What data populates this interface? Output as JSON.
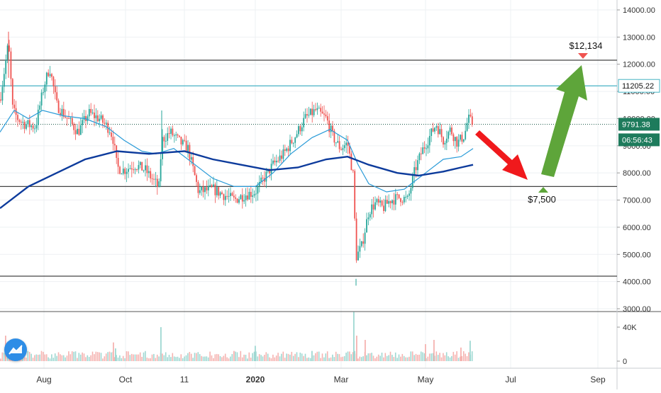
{
  "chart_data": {
    "type": "candlestick",
    "x_tick_labels": [
      "Aug",
      "Oct",
      "11",
      "2020",
      "Mar",
      "May",
      "Jul",
      "Sep"
    ],
    "y_tick_labels": [
      "14000.00",
      "13000.00",
      "12000.00",
      "11000.00",
      "10000.00",
      "9000.00",
      "8000.00",
      "7000.00",
      "6000.00",
      "5000.00",
      "4000.00",
      "3000.00"
    ],
    "ylim": [
      3000,
      14000
    ],
    "volume_tick_labels": [
      "40K",
      "0"
    ],
    "volume_ylim": [
      0,
      50000
    ],
    "horizontal_levels": [
      12150,
      11205.22,
      9791.38,
      7500,
      4200
    ],
    "price_tags": [
      {
        "label": "11205.22",
        "value": 11205.22,
        "style": "outline"
      },
      {
        "label": "9791.38",
        "value": 9791.38,
        "style": "green"
      },
      {
        "label": "06:56:43",
        "value": 9791.38,
        "style": "green-sub"
      }
    ],
    "annotations": [
      {
        "label": "$12,134",
        "value": 12134
      },
      {
        "label": "$7,500",
        "value": 7500
      }
    ],
    "price_anchors": [
      {
        "x": 0,
        "y": 10700
      },
      {
        "x": 12,
        "y": 12800
      },
      {
        "x": 18,
        "y": 10300
      },
      {
        "x": 25,
        "y": 10000
      },
      {
        "x": 35,
        "y": 9800
      },
      {
        "x": 50,
        "y": 9700
      },
      {
        "x": 62,
        "y": 11200
      },
      {
        "x": 70,
        "y": 11900
      },
      {
        "x": 80,
        "y": 10500
      },
      {
        "x": 95,
        "y": 10000
      },
      {
        "x": 110,
        "y": 9500
      },
      {
        "x": 125,
        "y": 10200
      },
      {
        "x": 140,
        "y": 10000
      },
      {
        "x": 155,
        "y": 9600
      },
      {
        "x": 160,
        "y": 9200
      },
      {
        "x": 165,
        "y": 8200
      },
      {
        "x": 175,
        "y": 8100
      },
      {
        "x": 190,
        "y": 8300
      },
      {
        "x": 205,
        "y": 8100
      },
      {
        "x": 220,
        "y": 7600
      },
      {
        "x": 224,
        "y": 7400
      },
      {
        "x": 228,
        "y": 9200
      },
      {
        "x": 240,
        "y": 9500
      },
      {
        "x": 255,
        "y": 9100
      },
      {
        "x": 265,
        "y": 8900
      },
      {
        "x": 280,
        "y": 7300
      },
      {
        "x": 300,
        "y": 7400
      },
      {
        "x": 315,
        "y": 7200
      },
      {
        "x": 330,
        "y": 7000
      },
      {
        "x": 345,
        "y": 7200
      },
      {
        "x": 360,
        "y": 7300
      },
      {
        "x": 370,
        "y": 7700
      },
      {
        "x": 385,
        "y": 8300
      },
      {
        "x": 400,
        "y": 8700
      },
      {
        "x": 415,
        "y": 9300
      },
      {
        "x": 430,
        "y": 10000
      },
      {
        "x": 445,
        "y": 10300
      },
      {
        "x": 460,
        "y": 10000
      },
      {
        "x": 470,
        "y": 9300
      },
      {
        "x": 480,
        "y": 8900
      },
      {
        "x": 490,
        "y": 9100
      },
      {
        "x": 498,
        "y": 7900
      },
      {
        "x": 502,
        "y": 4900
      },
      {
        "x": 510,
        "y": 5300
      },
      {
        "x": 520,
        "y": 6600
      },
      {
        "x": 530,
        "y": 6900
      },
      {
        "x": 540,
        "y": 6700
      },
      {
        "x": 550,
        "y": 7000
      },
      {
        "x": 565,
        "y": 7100
      },
      {
        "x": 575,
        "y": 7000
      },
      {
        "x": 585,
        "y": 8100
      },
      {
        "x": 595,
        "y": 8800
      },
      {
        "x": 605,
        "y": 9300
      },
      {
        "x": 615,
        "y": 9800
      },
      {
        "x": 625,
        "y": 9200
      },
      {
        "x": 635,
        "y": 9600
      },
      {
        "x": 645,
        "y": 9100
      },
      {
        "x": 655,
        "y": 9400
      },
      {
        "x": 660,
        "y": 10000
      },
      {
        "x": 667,
        "y": 9790
      }
    ],
    "ma_fast": [
      {
        "x": 0,
        "y": 9500
      },
      {
        "x": 20,
        "y": 10300
      },
      {
        "x": 40,
        "y": 10000
      },
      {
        "x": 60,
        "y": 10300
      },
      {
        "x": 90,
        "y": 10100
      },
      {
        "x": 120,
        "y": 10000
      },
      {
        "x": 150,
        "y": 9700
      },
      {
        "x": 175,
        "y": 9200
      },
      {
        "x": 200,
        "y": 8800
      },
      {
        "x": 220,
        "y": 8700
      },
      {
        "x": 245,
        "y": 8900
      },
      {
        "x": 270,
        "y": 8400
      },
      {
        "x": 300,
        "y": 7800
      },
      {
        "x": 330,
        "y": 7500
      },
      {
        "x": 360,
        "y": 7500
      },
      {
        "x": 385,
        "y": 8000
      },
      {
        "x": 410,
        "y": 8700
      },
      {
        "x": 440,
        "y": 9300
      },
      {
        "x": 465,
        "y": 9600
      },
      {
        "x": 490,
        "y": 9200
      },
      {
        "x": 505,
        "y": 8300
      },
      {
        "x": 520,
        "y": 7600
      },
      {
        "x": 545,
        "y": 7300
      },
      {
        "x": 570,
        "y": 7400
      },
      {
        "x": 600,
        "y": 8000
      },
      {
        "x": 625,
        "y": 8500
      },
      {
        "x": 650,
        "y": 8600
      },
      {
        "x": 667,
        "y": 8900
      }
    ],
    "ma_slow": [
      {
        "x": 0,
        "y": 6700
      },
      {
        "x": 40,
        "y": 7500
      },
      {
        "x": 80,
        "y": 8000
      },
      {
        "x": 120,
        "y": 8500
      },
      {
        "x": 165,
        "y": 8800
      },
      {
        "x": 210,
        "y": 8700
      },
      {
        "x": 260,
        "y": 8800
      },
      {
        "x": 300,
        "y": 8500
      },
      {
        "x": 340,
        "y": 8300
      },
      {
        "x": 380,
        "y": 8100
      },
      {
        "x": 420,
        "y": 8200
      },
      {
        "x": 460,
        "y": 8500
      },
      {
        "x": 490,
        "y": 8600
      },
      {
        "x": 520,
        "y": 8300
      },
      {
        "x": 560,
        "y": 8000
      },
      {
        "x": 590,
        "y": 7900
      },
      {
        "x": 625,
        "y": 8050
      },
      {
        "x": 650,
        "y": 8200
      },
      {
        "x": 667,
        "y": 8300
      }
    ],
    "volume_spikes": [
      {
        "x": 8,
        "y": 30000
      },
      {
        "x": 160,
        "y": 22000
      },
      {
        "x": 163,
        "y": 15000
      },
      {
        "x": 227,
        "y": 40000
      },
      {
        "x": 330,
        "y": 12000
      },
      {
        "x": 360,
        "y": 18000
      },
      {
        "x": 440,
        "y": 12000
      },
      {
        "x": 499,
        "y": 58000
      },
      {
        "x": 503,
        "y": 30000
      },
      {
        "x": 515,
        "y": 25000
      },
      {
        "x": 600,
        "y": 20000
      },
      {
        "x": 612,
        "y": 25000
      },
      {
        "x": 650,
        "y": 16000
      },
      {
        "x": 663,
        "y": 24000
      }
    ],
    "grid": true
  },
  "colors": {
    "up": "#26a69a",
    "down": "#ef5350",
    "ma_fast": "#2a9bd8",
    "ma_slow": "#0d3b9c",
    "level": "#444444",
    "level_light": "#46b3c4",
    "tag_green": "#1e7b5c",
    "arrow_red": "#f0191c",
    "arrow_green": "#5ea53a",
    "logo": "#2e8de6"
  }
}
